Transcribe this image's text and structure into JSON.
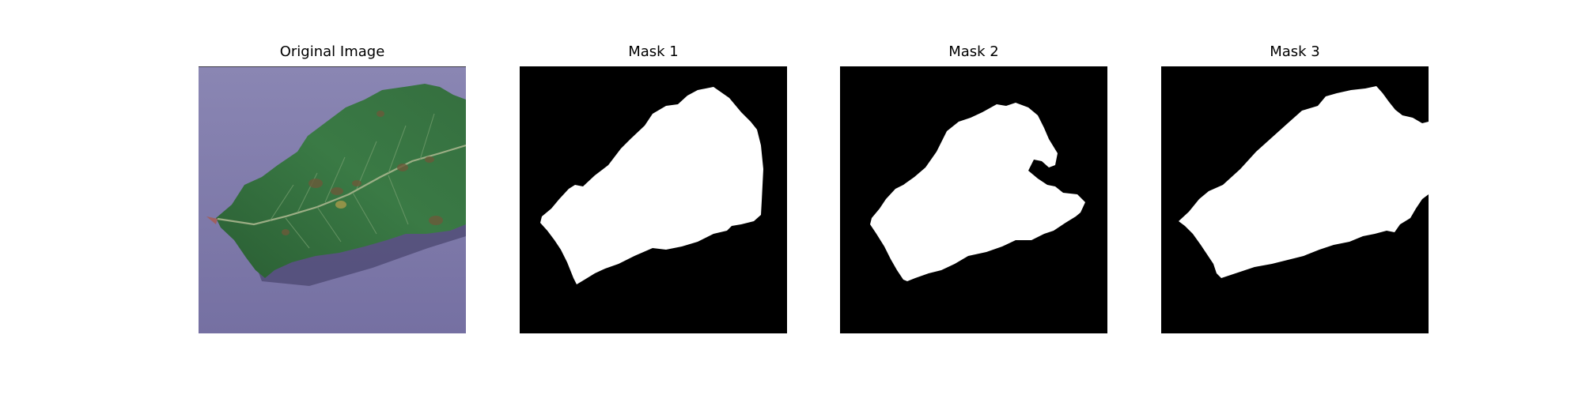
{
  "figure": {
    "panels": [
      {
        "title": "Original Image",
        "content": "leaf photo on purple background"
      },
      {
        "title": "Mask 1",
        "content": "binary segmentation mask"
      },
      {
        "title": "Mask 2",
        "content": "binary segmentation mask"
      },
      {
        "title": "Mask 3",
        "content": "binary segmentation mask"
      }
    ]
  },
  "colors": {
    "background": "#ffffff",
    "photo_background": "#7d78a8",
    "leaf": "#2f6b3e",
    "mask_background": "#000000",
    "mask_foreground": "#ffffff"
  },
  "icons": [
    "leaf-image",
    "mask-image"
  ]
}
